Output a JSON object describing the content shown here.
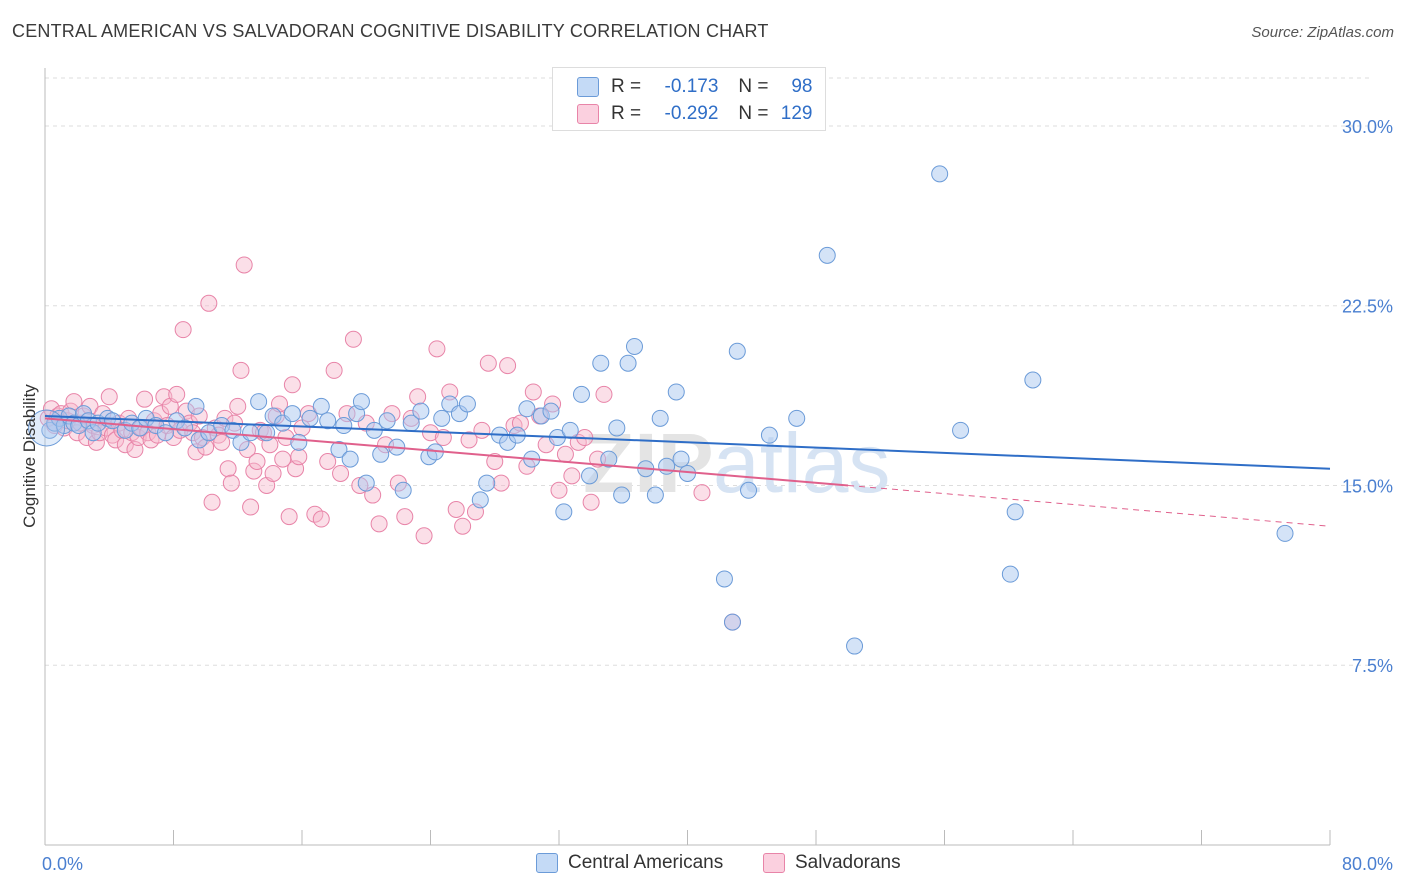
{
  "header": {
    "title": "CENTRAL AMERICAN VS SALVADORAN COGNITIVE DISABILITY CORRELATION CHART",
    "source_prefix": "Source: ",
    "source_brand": "ZipAtlas.com"
  },
  "watermark": {
    "zip": "ZIP",
    "atlas": "atlas"
  },
  "colors": {
    "blue_fill": "#aac8f0",
    "blue_stroke": "#6b9bd8",
    "blue_line": "#2f6ec7",
    "pink_fill": "#f6b8cd",
    "pink_stroke": "#e884a8",
    "pink_line": "#e0608c",
    "tick_label": "#4a7fd0",
    "grid": "#dddddd"
  },
  "legend": {
    "rows": [
      {
        "r_label": "R =",
        "r_value": "-0.173",
        "n_label": "N =",
        "n_value": "98",
        "series": "blue"
      },
      {
        "r_label": "R =",
        "r_value": "-0.292",
        "n_label": "N =",
        "n_value": "129",
        "series": "pink"
      }
    ]
  },
  "bottom_legend": {
    "blue": "Central Americans",
    "pink": "Salvadorans"
  },
  "chart_data": {
    "type": "scatter",
    "title": "CENTRAL AMERICAN VS SALVADORAN COGNITIVE DISABILITY CORRELATION CHART",
    "xlabel": "",
    "ylabel": "Cognitive Disability",
    "xlim": [
      0,
      80
    ],
    "ylim": [
      0,
      32
    ],
    "x_ticks": [
      0,
      80
    ],
    "x_tick_labels": [
      "0.0%",
      "80.0%"
    ],
    "y_ticks": [
      7.5,
      15.0,
      22.5,
      30.0
    ],
    "y_tick_labels": [
      "7.5%",
      "15.0%",
      "22.5%",
      "30.0%"
    ],
    "grid": true,
    "legend_position": "top-center",
    "series": [
      {
        "name": "Central Americans",
        "color": "blue",
        "r": -0.173,
        "n": 98,
        "trend": {
          "x": [
            0,
            80
          ],
          "y": [
            17.9,
            15.7
          ]
        },
        "points": [
          [
            0.3,
            17.3
          ],
          [
            0.6,
            17.6
          ],
          [
            0.9,
            17.8
          ],
          [
            1.2,
            17.5
          ],
          [
            1.5,
            17.9
          ],
          [
            1.8,
            17.6
          ],
          [
            2.1,
            17.5
          ],
          [
            2.4,
            18.0
          ],
          [
            2.7,
            17.7
          ],
          [
            3.0,
            17.2
          ],
          [
            3.3,
            17.6
          ],
          [
            3.9,
            17.8
          ],
          [
            4.2,
            17.7
          ],
          [
            5.0,
            17.3
          ],
          [
            5.4,
            17.6
          ],
          [
            5.9,
            17.4
          ],
          [
            6.3,
            17.8
          ],
          [
            6.9,
            17.5
          ],
          [
            7.5,
            17.2
          ],
          [
            8.2,
            17.7
          ],
          [
            8.7,
            17.4
          ],
          [
            9.4,
            18.3
          ],
          [
            9.6,
            16.9
          ],
          [
            10.2,
            17.2
          ],
          [
            11.0,
            17.5
          ],
          [
            11.7,
            17.3
          ],
          [
            12.2,
            16.8
          ],
          [
            12.8,
            17.2
          ],
          [
            13.3,
            18.5
          ],
          [
            13.8,
            17.2
          ],
          [
            14.2,
            17.9
          ],
          [
            14.8,
            17.6
          ],
          [
            15.4,
            18.0
          ],
          [
            15.8,
            16.8
          ],
          [
            16.5,
            17.8
          ],
          [
            17.2,
            18.3
          ],
          [
            17.6,
            17.7
          ],
          [
            18.3,
            16.5
          ],
          [
            18.6,
            17.5
          ],
          [
            19.0,
            16.1
          ],
          [
            19.4,
            18.0
          ],
          [
            19.7,
            18.5
          ],
          [
            20.0,
            15.1
          ],
          [
            20.5,
            17.3
          ],
          [
            20.9,
            16.3
          ],
          [
            21.3,
            17.7
          ],
          [
            21.9,
            16.6
          ],
          [
            22.3,
            14.8
          ],
          [
            22.8,
            17.6
          ],
          [
            23.4,
            18.1
          ],
          [
            23.9,
            16.2
          ],
          [
            24.3,
            16.4
          ],
          [
            24.7,
            17.8
          ],
          [
            25.2,
            18.4
          ],
          [
            25.8,
            18.0
          ],
          [
            26.3,
            18.4
          ],
          [
            27.1,
            14.4
          ],
          [
            27.5,
            15.1
          ],
          [
            28.3,
            17.1
          ],
          [
            28.8,
            16.8
          ],
          [
            29.4,
            17.1
          ],
          [
            30.0,
            18.2
          ],
          [
            30.3,
            16.1
          ],
          [
            30.9,
            17.9
          ],
          [
            31.5,
            18.1
          ],
          [
            31.9,
            17.0
          ],
          [
            32.3,
            13.9
          ],
          [
            32.7,
            17.3
          ],
          [
            33.4,
            18.8
          ],
          [
            33.9,
            15.4
          ],
          [
            34.6,
            20.1
          ],
          [
            35.1,
            16.1
          ],
          [
            35.6,
            17.4
          ],
          [
            35.9,
            14.6
          ],
          [
            36.3,
            20.1
          ],
          [
            36.7,
            20.8
          ],
          [
            37.4,
            15.7
          ],
          [
            38.0,
            14.6
          ],
          [
            38.3,
            17.8
          ],
          [
            38.7,
            15.8
          ],
          [
            39.3,
            18.9
          ],
          [
            39.6,
            16.1
          ],
          [
            40.0,
            15.5
          ],
          [
            42.3,
            11.1
          ],
          [
            43.1,
            20.6
          ],
          [
            43.8,
            14.8
          ],
          [
            45.1,
            17.1
          ],
          [
            46.8,
            17.8
          ],
          [
            48.7,
            24.6
          ],
          [
            50.4,
            8.3
          ],
          [
            55.7,
            28.0
          ],
          [
            57.0,
            17.3
          ],
          [
            60.1,
            11.3
          ],
          [
            60.4,
            13.9
          ],
          [
            61.5,
            19.4
          ],
          [
            77.2,
            13.0
          ],
          [
            42.8,
            9.3
          ],
          [
            0.1,
            17.4
          ]
        ]
      },
      {
        "name": "Salvadorans",
        "color": "pink",
        "r": -0.292,
        "n": 129,
        "trend": {
          "x": [
            0,
            50
          ],
          "y": [
            17.8,
            15.0
          ]
        },
        "trend_dashed": {
          "x": [
            50,
            80
          ],
          "y": [
            15.0,
            13.3
          ]
        },
        "points": [
          [
            0.2,
            17.8
          ],
          [
            0.4,
            18.2
          ],
          [
            0.6,
            17.5
          ],
          [
            0.8,
            17.9
          ],
          [
            1.0,
            18.0
          ],
          [
            1.2,
            17.4
          ],
          [
            1.4,
            17.7
          ],
          [
            1.6,
            18.1
          ],
          [
            1.8,
            18.5
          ],
          [
            2.0,
            17.2
          ],
          [
            2.2,
            17.6
          ],
          [
            2.4,
            17.9
          ],
          [
            2.6,
            17.0
          ],
          [
            2.8,
            18.3
          ],
          [
            3.0,
            17.5
          ],
          [
            3.2,
            16.8
          ],
          [
            3.4,
            17.2
          ],
          [
            3.6,
            18.0
          ],
          [
            3.8,
            17.4
          ],
          [
            4.0,
            18.7
          ],
          [
            4.2,
            17.1
          ],
          [
            4.4,
            16.9
          ],
          [
            4.6,
            17.6
          ],
          [
            4.8,
            17.3
          ],
          [
            5.0,
            16.7
          ],
          [
            5.2,
            17.8
          ],
          [
            5.4,
            17.2
          ],
          [
            5.6,
            16.5
          ],
          [
            5.8,
            17.0
          ],
          [
            6.0,
            17.4
          ],
          [
            6.2,
            18.6
          ],
          [
            6.4,
            17.2
          ],
          [
            6.6,
            16.9
          ],
          [
            6.8,
            17.7
          ],
          [
            7.0,
            17.1
          ],
          [
            7.2,
            18.0
          ],
          [
            7.4,
            18.7
          ],
          [
            7.6,
            17.5
          ],
          [
            7.8,
            18.3
          ],
          [
            8.0,
            17.0
          ],
          [
            8.2,
            18.8
          ],
          [
            8.4,
            17.3
          ],
          [
            8.6,
            21.5
          ],
          [
            8.8,
            18.1
          ],
          [
            9.0,
            17.6
          ],
          [
            9.2,
            17.2
          ],
          [
            9.4,
            16.4
          ],
          [
            9.6,
            17.9
          ],
          [
            9.8,
            17.0
          ],
          [
            10.0,
            16.6
          ],
          [
            10.2,
            22.6
          ],
          [
            10.4,
            14.3
          ],
          [
            10.6,
            17.4
          ],
          [
            10.8,
            17.1
          ],
          [
            11.0,
            16.8
          ],
          [
            11.2,
            17.8
          ],
          [
            11.4,
            15.7
          ],
          [
            11.6,
            15.1
          ],
          [
            11.8,
            17.6
          ],
          [
            12.0,
            18.3
          ],
          [
            12.2,
            19.8
          ],
          [
            12.4,
            24.2
          ],
          [
            12.6,
            16.5
          ],
          [
            12.8,
            14.1
          ],
          [
            13.0,
            15.6
          ],
          [
            13.2,
            16.0
          ],
          [
            13.4,
            17.3
          ],
          [
            13.6,
            17.2
          ],
          [
            13.8,
            15.0
          ],
          [
            14.0,
            16.7
          ],
          [
            14.2,
            15.5
          ],
          [
            14.4,
            17.9
          ],
          [
            14.6,
            18.4
          ],
          [
            14.8,
            16.1
          ],
          [
            15.0,
            17.0
          ],
          [
            15.2,
            13.7
          ],
          [
            15.4,
            19.2
          ],
          [
            15.6,
            15.7
          ],
          [
            15.8,
            16.2
          ],
          [
            16.0,
            17.4
          ],
          [
            16.4,
            18.0
          ],
          [
            16.8,
            13.8
          ],
          [
            17.2,
            13.6
          ],
          [
            17.6,
            16.0
          ],
          [
            18.0,
            19.8
          ],
          [
            18.4,
            15.5
          ],
          [
            18.8,
            18.0
          ],
          [
            19.2,
            21.1
          ],
          [
            19.6,
            15.0
          ],
          [
            20.0,
            17.6
          ],
          [
            20.4,
            14.6
          ],
          [
            20.8,
            13.4
          ],
          [
            21.2,
            16.7
          ],
          [
            21.6,
            18.0
          ],
          [
            22.0,
            15.1
          ],
          [
            22.4,
            13.7
          ],
          [
            22.8,
            17.8
          ],
          [
            23.2,
            18.7
          ],
          [
            23.6,
            12.9
          ],
          [
            24.0,
            17.2
          ],
          [
            24.4,
            20.7
          ],
          [
            24.8,
            17.0
          ],
          [
            25.2,
            18.9
          ],
          [
            25.6,
            14.0
          ],
          [
            26.0,
            13.3
          ],
          [
            26.4,
            16.9
          ],
          [
            26.8,
            13.9
          ],
          [
            27.2,
            17.3
          ],
          [
            27.6,
            20.1
          ],
          [
            28.0,
            16.0
          ],
          [
            28.4,
            15.1
          ],
          [
            28.8,
            20.0
          ],
          [
            29.2,
            17.5
          ],
          [
            29.6,
            17.6
          ],
          [
            30.0,
            15.8
          ],
          [
            30.4,
            18.9
          ],
          [
            30.8,
            17.9
          ],
          [
            31.2,
            16.7
          ],
          [
            31.6,
            18.4
          ],
          [
            32.0,
            14.8
          ],
          [
            32.4,
            16.3
          ],
          [
            32.8,
            15.4
          ],
          [
            33.2,
            16.8
          ],
          [
            33.6,
            17.0
          ],
          [
            34.0,
            14.3
          ],
          [
            34.4,
            16.1
          ],
          [
            34.8,
            18.8
          ],
          [
            42.8,
            9.3
          ],
          [
            40.9,
            14.7
          ]
        ]
      }
    ]
  }
}
